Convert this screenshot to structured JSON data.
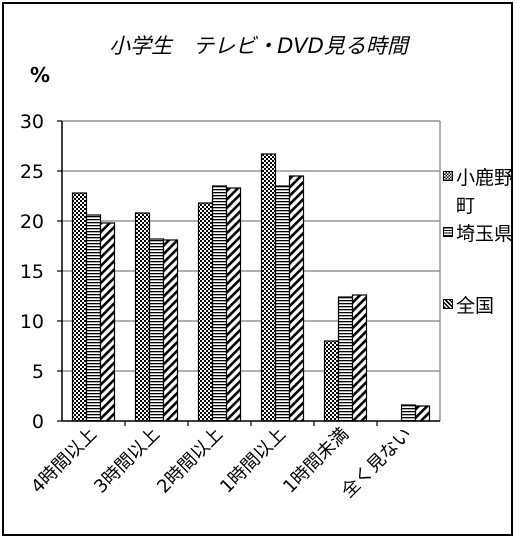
{
  "chart_data": {
    "type": "bar",
    "title": "小学生　テレビ・DVD見る時間",
    "ylabel": "%",
    "xlabel": "",
    "ylim": [
      0,
      30
    ],
    "yticks": [
      0,
      5,
      10,
      15,
      20,
      25,
      30
    ],
    "grid": true,
    "legend_position": "right",
    "categories": [
      "4時間以上",
      "3時間以上",
      "2時間以上",
      "1時間以上",
      "1時間未満",
      "全く見ない"
    ],
    "series": [
      {
        "name": "小鹿野町",
        "pattern": "checker",
        "values": [
          22.8,
          20.8,
          21.8,
          26.7,
          8.0,
          0
        ]
      },
      {
        "name": "埼玉県",
        "pattern": "horizontal-stripes",
        "values": [
          20.6,
          18.2,
          23.5,
          23.5,
          12.4,
          1.6
        ]
      },
      {
        "name": "全国",
        "pattern": "diagonal-stripes",
        "values": [
          19.8,
          18.1,
          23.3,
          24.5,
          12.6,
          1.5
        ]
      }
    ],
    "colors": {
      "bar_outline": "#000000",
      "gridline": "#808080",
      "background": "#ffffff"
    }
  }
}
